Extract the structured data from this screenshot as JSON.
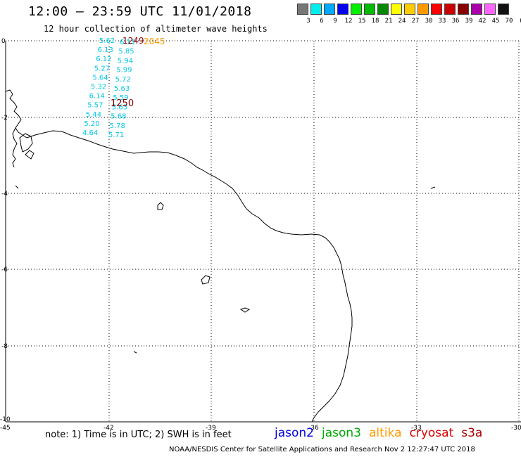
{
  "header": {
    "title": "12:00 – 23:59 UTC 11/01/2018",
    "subtitle": "12 hour collection of altimeter wave heights"
  },
  "scale": {
    "unit_label": "(ft)",
    "bins": [
      {
        "label": "3",
        "color": "#777777"
      },
      {
        "label": "6",
        "color": "#00eeee"
      },
      {
        "label": "9",
        "color": "#00aaff"
      },
      {
        "label": "12",
        "color": "#0000ee"
      },
      {
        "label": "15",
        "color": "#00ee00"
      },
      {
        "label": "18",
        "color": "#00bb00"
      },
      {
        "label": "21",
        "color": "#008800"
      },
      {
        "label": "24",
        "color": "#ffff00"
      },
      {
        "label": "27",
        "color": "#ffcc00"
      },
      {
        "label": "30",
        "color": "#ff9900"
      },
      {
        "label": "33",
        "color": "#ff0000"
      },
      {
        "label": "36",
        "color": "#cc0000"
      },
      {
        "label": "39",
        "color": "#880000"
      },
      {
        "label": "42",
        "color": "#aa00aa"
      },
      {
        "label": "45",
        "color": "#ff66ff"
      },
      {
        "label": "70",
        "color": "#111111"
      }
    ]
  },
  "axes": {
    "x_ticks": [
      "-45",
      "-42",
      "-39",
      "-36",
      "-33",
      "-30"
    ],
    "y_ticks": [
      "0",
      "-2",
      "-4",
      "-6",
      "-8",
      "-10"
    ]
  },
  "tracks": {
    "times": [
      {
        "text": "1249",
        "color": "#880000"
      },
      {
        "text": "2045",
        "color": "#ff9900"
      },
      {
        "text": "1250",
        "color": "#880000"
      }
    ],
    "left_column": [
      "5.62",
      "6.13",
      "6.12",
      "5.27",
      "5.64",
      "5.32",
      "6.14",
      "5.57",
      "5.44",
      "5.20",
      "4.64"
    ],
    "right_column": [
      "6.11",
      "5.85",
      "5.94",
      "5.99",
      "5.72",
      "5.63",
      "5.59",
      "5.63",
      "5.68",
      "5.78",
      "5.71"
    ]
  },
  "footer": {
    "note": "note: 1) Time is in UTC; 2) SWH is in feet",
    "satellites": [
      {
        "name": "jason2",
        "color": "#0000dd"
      },
      {
        "name": "jason3",
        "color": "#00aa00"
      },
      {
        "name": "altika",
        "color": "#ff9900"
      },
      {
        "name": "cryosat",
        "color": "#dd0000"
      },
      {
        "name": "s3a",
        "color": "#aa0000"
      }
    ],
    "credit": "NOAA/NESDIS Center for Satellite Applications and Research    Nov  2 12:27:47 UTC 2018"
  }
}
